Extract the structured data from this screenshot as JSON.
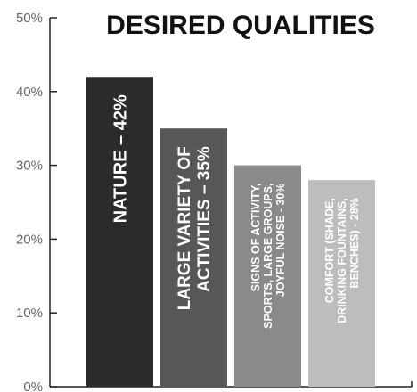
{
  "chart_data": {
    "type": "bar",
    "title": "DESIRED QUALITIES",
    "categories": [
      "NATURE",
      "LARGE VARIETY OF ACTIVITIES",
      "SIGNS OF ACTIVITY, SPORTS, LARGE GROUPS, JOYFUL NOISE",
      "COMFORT (SHADE, DRINKING FOUNTAINS, BENCHES)"
    ],
    "values": [
      42,
      35,
      30,
      28
    ],
    "bar_labels": [
      [
        "NATURE – 42%"
      ],
      [
        "LARGE VARIETY OF",
        "ACTIVITIES – 35%"
      ],
      [
        "SIGNS OF ACTIVITY,",
        "SPORTS, LARGE GROUPS,",
        "JOYFUL NOISE - 30%"
      ],
      [
        "COMFORT (SHADE,",
        "DRINKING FOUNTAINS,",
        "BENCHES) - 28%"
      ]
    ],
    "ylim": [
      0,
      50
    ],
    "yticks": [
      "0%",
      "10%",
      "20%",
      "30%",
      "40%",
      "50%"
    ],
    "xlabel": "",
    "ylabel": "",
    "colors": {
      "bars": [
        "#2b2b2b",
        "#575757",
        "#8a8a8a",
        "#bdbdbd"
      ],
      "axis": "#222222",
      "text_dark": "#111111",
      "text_light": "#ffffff",
      "tick_text": "#666666"
    },
    "grid": false,
    "legend": "none"
  }
}
